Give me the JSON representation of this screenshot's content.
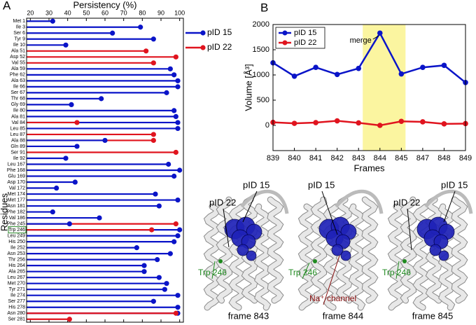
{
  "chart_data": [
    {
      "type": "lollipop",
      "panel": "A",
      "x_label": "Persistency (%)",
      "y_label": "Residues",
      "categories": [
        "Met 1",
        "Ile 3",
        "Ser 6",
        "Tyr 9",
        "Ile 10",
        "Ala 51",
        "Asp 52",
        "Val 55",
        "Ala 59",
        "Phe 62",
        "Ala 63",
        "Ile 66",
        "Ser 67",
        "Thr 68",
        "Gly 69",
        "Ile 80",
        "Ala 81",
        "Val 84",
        "Leu 85",
        "Leu 87",
        "Ala 88",
        "Gln 89",
        "Ser 91",
        "Ile 92",
        "Leu 167",
        "Phe 168",
        "Glu 169",
        "Asp 170",
        "Val 172",
        "Met 174",
        "Met 177",
        "Asn 181",
        "Phe 182",
        "Val 186",
        "Phe 245",
        "Trp 246",
        "Leu 249",
        "His 250",
        "Ile 252",
        "Asn 253",
        "Thr 256",
        "His 264",
        "Ala 265",
        "Leu 267",
        "Met 270",
        "Tyr 271",
        "Ile 274",
        "Ser 277",
        "His 278",
        "Asn 280",
        "Ser 281"
      ],
      "series": [
        {
          "name": "pID 15",
          "color": "#0a14c8",
          "values": [
            32,
            79,
            64,
            86,
            39,
            null,
            null,
            null,
            95,
            97,
            99,
            99,
            93,
            58,
            42,
            97,
            98,
            99,
            99,
            null,
            60,
            45,
            null,
            39,
            94,
            100,
            97,
            44,
            34,
            87,
            99,
            89,
            32,
            57,
            41,
            100,
            99,
            97,
            77,
            95,
            88,
            81,
            81,
            89,
            93,
            92,
            99,
            86,
            99,
            99,
            null
          ]
        },
        {
          "name": "pID 22",
          "color": "#e0141e",
          "values": [
            null,
            null,
            null,
            null,
            null,
            82,
            98,
            86,
            null,
            null,
            null,
            null,
            null,
            null,
            null,
            null,
            null,
            45,
            null,
            86,
            86,
            null,
            98,
            null,
            null,
            null,
            null,
            null,
            null,
            null,
            null,
            null,
            null,
            null,
            98,
            85,
            null,
            null,
            null,
            null,
            null,
            null,
            null,
            null,
            null,
            null,
            null,
            null,
            null,
            98,
            41
          ]
        }
      ],
      "xlim": [
        18,
        102
      ],
      "xticks": [
        20,
        30,
        40,
        50,
        60,
        70,
        80,
        90,
        100
      ],
      "highlight": "Trp 246",
      "highlight_color": "#2a8a2a"
    },
    {
      "type": "line",
      "panel": "B",
      "x_label": "Frames",
      "y_label": "Volume [Å³]",
      "categories": [
        "839",
        "840",
        "841",
        "842",
        "843",
        "844",
        "845",
        "847",
        "848",
        "849"
      ],
      "series": [
        {
          "name": "pID 15",
          "color": "#0a14c8",
          "values": [
            1240,
            975,
            1150,
            1010,
            1130,
            1830,
            1020,
            1150,
            1190,
            850
          ]
        },
        {
          "name": "pID 22",
          "color": "#e0141e",
          "values": [
            60,
            40,
            55,
            90,
            50,
            0,
            80,
            70,
            30,
            35
          ]
        }
      ],
      "ylim": [
        -500,
        2000
      ],
      "yticks": [
        0,
        500,
        1000,
        1500,
        2000
      ],
      "highlight_range": [
        "843",
        "845"
      ],
      "highlight_color": "#fbf5a0",
      "annotation": "merge",
      "legend": "upper left"
    }
  ],
  "structures": [
    {
      "caption": "frame 843",
      "labels": [
        "pID 15",
        "pID 22",
        "Trp 246"
      ]
    },
    {
      "caption": "frame 844",
      "labels": [
        "pID 15",
        "Trp 246",
        "Na⁺ channel"
      ]
    },
    {
      "caption": "frame 845",
      "labels": [
        "pID 15",
        "pID 22",
        "Trp 246"
      ]
    }
  ]
}
